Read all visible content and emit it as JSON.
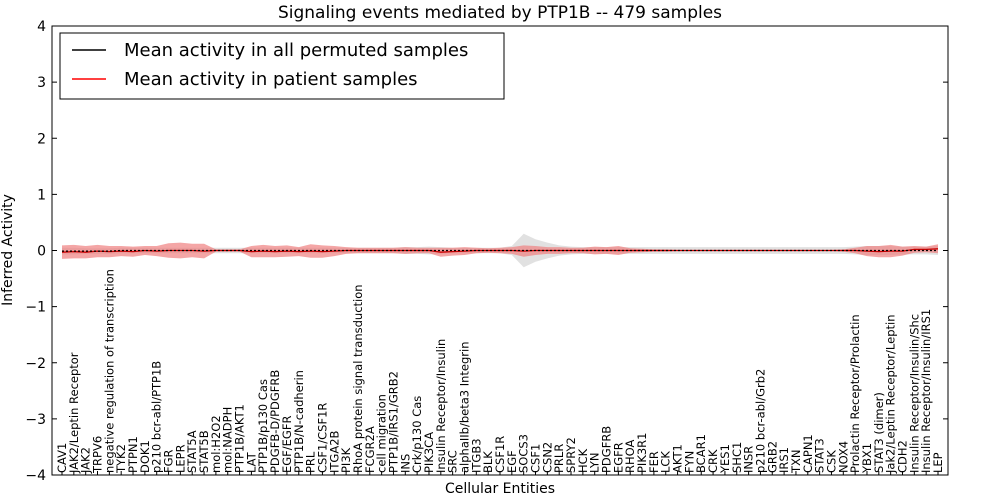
{
  "chart_data": {
    "type": "line",
    "title": "Signaling events mediated by PTP1B -- 479 samples",
    "xlabel": "Cellular Entities",
    "ylabel": "Inferred Activity",
    "ylim": [
      -4,
      4
    ],
    "yticks": [
      4,
      3,
      2,
      1,
      0,
      -1,
      -2,
      -3,
      -4
    ],
    "ytick_labels": [
      "4",
      "3",
      "2",
      "1",
      "0",
      "−1",
      "−2",
      "−3",
      "−4"
    ],
    "legend": [
      {
        "label": "Mean activity in all permuted samples",
        "color": "#000000"
      },
      {
        "label": "Mean activity in patient samples",
        "color": "#ff0000"
      }
    ],
    "legend_position": "top-left",
    "colors": {
      "permuted_line": "#000000",
      "permuted_band": "#c8c8c8",
      "patient_line": "#cc0000",
      "patient_band": "#f08080"
    },
    "categories": [
      "CAV1",
      "JAK2/Leptin Receptor",
      "JAK2",
      "TRPV6",
      "negative regulation of transcription",
      "TYK2",
      "PTPN1",
      "DOK1",
      "p210 bcr-abl/PTP1B",
      "FGR",
      "LEPR",
      "STAT5A",
      "STAT5B",
      "mol:H2O2",
      "mol:NADPH",
      "PTP1B/AKT1",
      "LAT",
      "PTP1B/p130 Cas",
      "PDGFB-D/PDGFRB",
      "EGF/EGFR",
      "PTP1B/N-cadherin",
      "PRL",
      "CSF1/CSF1R",
      "ITGA2B",
      "PI3K",
      "RhoA protein signal transduction",
      "FCGR2A",
      "cell migration",
      "PTP1B/IRS1/GRB2",
      "INS",
      "Crk/p130 Cas",
      "PIK3CA",
      "Insulin Receptor/Insulin",
      "SRC",
      "alphaIIb/beta3 Integrin",
      "ITGB3",
      "BLK",
      "CSF1R",
      "EGF",
      "SOCS3",
      "CSF1",
      "CSN2",
      "PRLR",
      "SPRY2",
      "HCK",
      "LYN",
      "PDGFRB",
      "EGFR",
      "RHOA",
      "PIK3R1",
      "FER",
      "LCK",
      "AKT1",
      "FYN",
      "BCAR1",
      "CRK",
      "YES1",
      "SHC1",
      "INSR",
      "p210 bcr-abl/Grb2",
      "GRB2",
      "IRS1",
      "TXN",
      "CAPN1",
      "STAT3",
      "CSK",
      "NOX4",
      "Prolactin Receptor/Prolactin",
      "YBX1",
      "STAT3 (dimer)",
      "Jak2/Leptin Receptor/Leptin",
      "CDH2",
      "Insulin Receptor/Insulin/Shc",
      "Insulin Receptor/Insulin/IRS1",
      "LEP"
    ],
    "series": [
      {
        "name": "Mean activity in all permuted samples",
        "values": [
          -0.01,
          -0.01,
          -0.01,
          -0.01,
          -0.01,
          0,
          0,
          0,
          0,
          0,
          0,
          0,
          0,
          0,
          0,
          0,
          0,
          0,
          0,
          0,
          0,
          0,
          0,
          0,
          0,
          0,
          0,
          0,
          0,
          0,
          0,
          0,
          0,
          0,
          0,
          0,
          0,
          0,
          0,
          0,
          0,
          0,
          0,
          0,
          0,
          0,
          0,
          0,
          0,
          0,
          0,
          0,
          0,
          0,
          0,
          0,
          0,
          0,
          0,
          0,
          0,
          0,
          0,
          0,
          0,
          0,
          0,
          0,
          0,
          0,
          0,
          0,
          0,
          0,
          0
        ],
        "band": [
          0.06,
          0.06,
          0.05,
          0.05,
          0.05,
          0.05,
          0.05,
          0.05,
          0.05,
          0.05,
          0.05,
          0.05,
          0.05,
          0.05,
          0.05,
          0.05,
          0.05,
          0.05,
          0.05,
          0.05,
          0.05,
          0.05,
          0.05,
          0.05,
          0.05,
          0.05,
          0.05,
          0.05,
          0.05,
          0.06,
          0.06,
          0.07,
          0.06,
          0.05,
          0.05,
          0.05,
          0.05,
          0.05,
          0.08,
          0.3,
          0.2,
          0.14,
          0.09,
          0.07,
          0.06,
          0.06,
          0.06,
          0.06,
          0.06,
          0.06,
          0.06,
          0.06,
          0.06,
          0.06,
          0.06,
          0.06,
          0.06,
          0.06,
          0.06,
          0.06,
          0.06,
          0.06,
          0.06,
          0.06,
          0.06,
          0.06,
          0.06,
          0.07,
          0.08,
          0.08,
          0.08,
          0.07,
          0.07,
          0.07,
          0.08
        ]
      },
      {
        "name": "Mean activity in patient samples",
        "values": [
          -0.03,
          -0.02,
          -0.03,
          -0.01,
          -0.02,
          -0.01,
          -0.02,
          0,
          -0.01,
          0,
          0,
          0,
          -0.01,
          0,
          0,
          0,
          -0.02,
          -0.01,
          -0.02,
          -0.01,
          -0.02,
          -0.01,
          -0.02,
          -0.01,
          0,
          0,
          0,
          0,
          0,
          0,
          0,
          0,
          -0.03,
          -0.02,
          -0.01,
          0,
          0,
          0,
          0,
          -0.01,
          0,
          0,
          0,
          0,
          0,
          0,
          0,
          0,
          0,
          0,
          0,
          0,
          0,
          0,
          0,
          0,
          0,
          0,
          0,
          0,
          0,
          0,
          0,
          0,
          0,
          0,
          0,
          0,
          -0.01,
          -0.02,
          -0.01,
          -0.01,
          0.02,
          0.02,
          0.03
        ],
        "band": [
          0.12,
          0.12,
          0.11,
          0.11,
          0.1,
          0.09,
          0.09,
          0.08,
          0.09,
          0.13,
          0.14,
          0.12,
          0.13,
          0.02,
          0.02,
          0.02,
          0.1,
          0.11,
          0.1,
          0.1,
          0.08,
          0.12,
          0.11,
          0.09,
          0.06,
          0.05,
          0.05,
          0.05,
          0.05,
          0.06,
          0.05,
          0.05,
          0.08,
          0.07,
          0.07,
          0.05,
          0.04,
          0.05,
          0.06,
          0.1,
          0.08,
          0.06,
          0.06,
          0.05,
          0.05,
          0.07,
          0.06,
          0.08,
          0.04,
          0.03,
          0.02,
          0.02,
          0.01,
          0.01,
          0.01,
          0.01,
          0.01,
          0.01,
          0.01,
          0.01,
          0.01,
          0.01,
          0.01,
          0.01,
          0.01,
          0.01,
          0.02,
          0.05,
          0.09,
          0.1,
          0.11,
          0.08,
          0.06,
          0.05,
          0.08
        ]
      }
    ]
  }
}
